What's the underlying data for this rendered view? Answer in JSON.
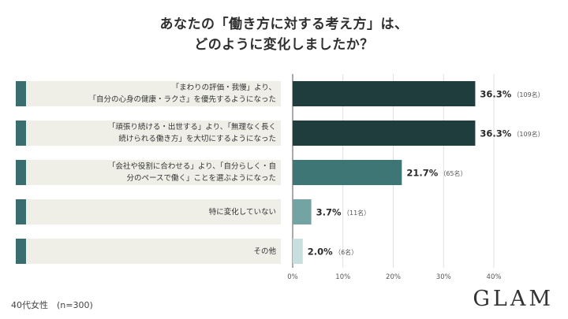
{
  "title_line1": "あなたの「働き方に対する考え方」は、",
  "title_line2": "どのように変化しましたか？",
  "footnote": "40代女性　(n=300)",
  "logo": "GLAM",
  "colors": {
    "accent_bar": "#3a6e6e",
    "label_bg": "#efefe8",
    "bar_dark": "#1f3d3c",
    "bar_mid": "#3e7676",
    "bar_light": "#74a3a3",
    "bar_lightest": "#c7dfdf"
  },
  "chart_data": {
    "type": "bar",
    "orientation": "horizontal",
    "categories": [
      "「まわりの評価・我慢」より、\n「自分の心身の健康・ラクさ」を優先するようになった",
      "「頑張り続ける・出世する」より、「無理なく長く\n続けられる働き方」を大切にするようになった",
      "「会社や役割に合わせる」より、「自分らしく・自\n分のペースで働く」ことを選ぶようになった",
      "特に変化していない",
      "その他"
    ],
    "values": [
      36.3,
      36.3,
      21.7,
      3.7,
      2.0
    ],
    "value_labels": [
      "36.3%",
      "36.3%",
      "21.7%",
      "3.7%",
      "2.0%"
    ],
    "count_labels": [
      "（109名）",
      "（109名）",
      "（65名）",
      "（11名）",
      "（6名）"
    ],
    "bar_colors": [
      "#1f3d3c",
      "#1f3d3c",
      "#3e7676",
      "#74a3a3",
      "#c7dfdf"
    ],
    "xlim": [
      0,
      40
    ],
    "xticks": [
      "0%",
      "10%",
      "20%",
      "30%",
      "40%"
    ],
    "grid": true,
    "title": "",
    "xlabel": "",
    "ylabel": ""
  }
}
